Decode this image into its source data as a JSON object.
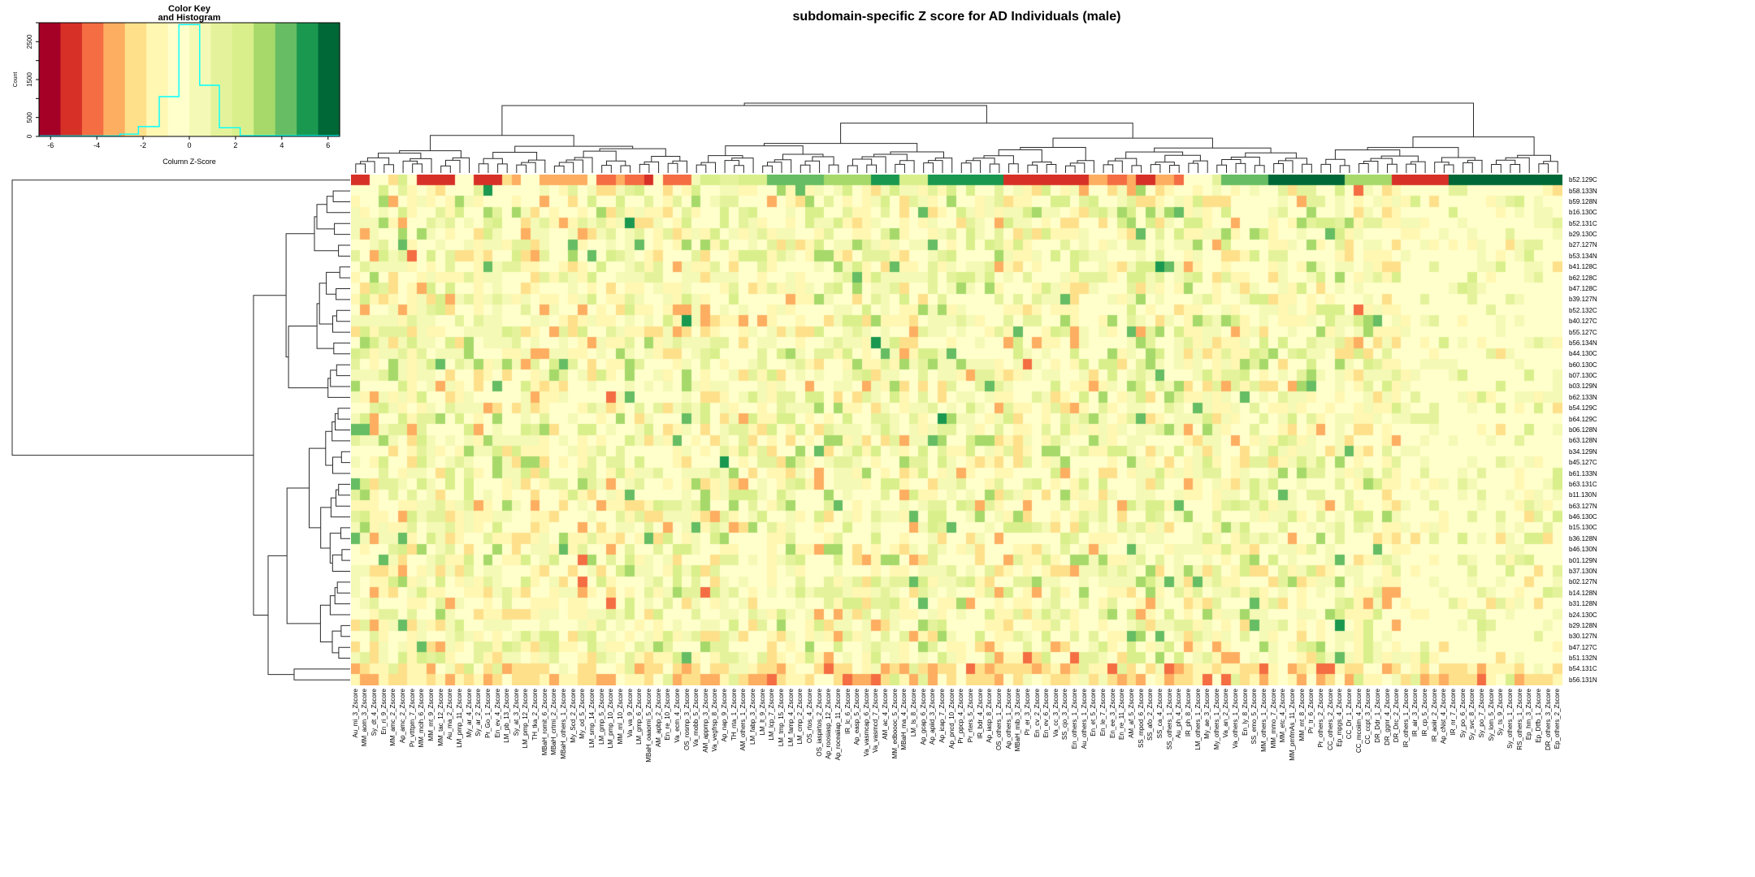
{
  "title": "subdomain-specific Z score for AD Individuals (male)",
  "color_key": {
    "title_line1": "Color Key",
    "title_line2": "and Histogram",
    "xlabel": "Column Z-Score",
    "ylabel": "Count",
    "x_ticks": [
      -6,
      -4,
      -2,
      0,
      2,
      4,
      6
    ],
    "x_range": [
      -6.5,
      6.5
    ],
    "y_ticks_all": [
      0,
      500,
      1000,
      1500,
      2000,
      2500,
      3000
    ],
    "y_ticks_labeled": [
      0,
      500,
      1500,
      2500
    ],
    "y_max": 3000,
    "histogram_color": "#00FFFF",
    "histogram_steps": [
      [
        -6.5,
        -3.0,
        15
      ],
      [
        -3.0,
        -2.2,
        60
      ],
      [
        -2.2,
        -1.3,
        260
      ],
      [
        -1.3,
        -0.45,
        1050
      ],
      [
        -0.45,
        0.45,
        2950
      ],
      [
        0.45,
        1.3,
        1350
      ],
      [
        1.3,
        2.2,
        230
      ],
      [
        2.2,
        6.5,
        20
      ]
    ]
  },
  "chart_data": {
    "type": "heatmap",
    "title": "subdomain-specific Z score for AD Individuals (male)",
    "value_scale_label": "Column Z-Score",
    "value_range": [
      -6.5,
      6.5
    ],
    "palette": [
      "#a50026",
      "#d73027",
      "#f46d43",
      "#fdae61",
      "#fee08b",
      "#fff7b2",
      "#ffffcc",
      "#f4f9b5",
      "#e4f39b",
      "#d9ef8b",
      "#a6d96a",
      "#66bd63",
      "#1a9850",
      "#006837"
    ],
    "row_labels": [
      "b52.129C",
      "b58.133N",
      "b59.128N",
      "b16.130C",
      "b52.131C",
      "b29.130C",
      "b27.127N",
      "b53.134N",
      "b41.128C",
      "b62.128C",
      "b47.128C",
      "b39.127N",
      "b52.132C",
      "b40.127C",
      "b55.127C",
      "b56.134N",
      "b44.130C",
      "b60.130C",
      "b07.130C",
      "b03.129N",
      "b62.133N",
      "b54.129C",
      "b64.129C",
      "b06.128N",
      "b63.128N",
      "b34.129N",
      "b45.127C",
      "b61.133N",
      "b63.131C",
      "b11.130N",
      "b63.127N",
      "b46.130C",
      "b15.130C",
      "b36.128N",
      "b46.130N",
      "b01.129N",
      "b37.130N",
      "b02.127N",
      "b14.128N",
      "b31.128N",
      "b24.130C",
      "b29.128N",
      "b30.127N",
      "b47.127C",
      "b51.132N",
      "b54.131C",
      "b56.131N"
    ],
    "col_labels": [
      "Au_mi_3_Zscore",
      "MM_aom_3_Zscore",
      "Sy_dt_4_Zscore",
      "En_ri_9_Zscore",
      "MM_amc_2_Zscore",
      "Ap_amc_2_Zscore",
      "Pr_vtttpm_7_Zscore",
      "MM_mcih_6_Zscore",
      "MM_mt_9_Zscore",
      "MM_tac_12_Zscore",
      "Au_ma_2_Zscore",
      "LM_pmp_11_Zscore",
      "My_ar_4_Zscore",
      "Sy_ar_2_Zscore",
      "Pr_Go_1_Zscore",
      "En_ev_4_Zscore",
      "LM_pb_13_Zscore",
      "Sy_at_3_Zscore",
      "LM_pmp_12_Zscore",
      "TH_tka_2_Zscore",
      "MBaH_romit_6_Zscore",
      "MBaH_crtmi_2_Zscore",
      "MBaH_others_1_Zscore",
      "My_Scd_2_Zscore",
      "My_od_5_Zscore",
      "LM_smp_14_Zscore",
      "LM_gmp_5_Zscore",
      "LM_pmp_10_Zscore",
      "MM_ml_10_Zscore",
      "Va_va_9_Zscore",
      "LM_gmp_6_Zscore",
      "MBaH_oaaomi_5_Zscore",
      "AM_apbp_2_Zscore",
      "En_re_10_Zscore",
      "Va_ecm_4_Zscore",
      "OS_rosmp_3_Zscore",
      "Va_mobb_5_Zscore",
      "AM_appmp_3_Zscore",
      "Va_vegfrsp_8_Zscore",
      "Ap_nap_9_Zscore",
      "TH_nta_1_Zscore",
      "AM_others_1_Zscore",
      "LM_fabp_3_Zscore",
      "LM_lt_9_Zscore",
      "LM_lcp_7_Zscore",
      "LM_tmp_15_Zscore",
      "LM_famp_4_Zscore",
      "LM_cmp_2_Zscore",
      "OS_rtos_4_Zscore",
      "OS_iaspirtos_2_Zscore",
      "Ap_roosiasp_12_Zscore",
      "Ap_roceaiiap_11_Zscore",
      "IR_lc_6_Zscore",
      "Ap_easp_5_Zscore",
      "Va_vasmcap_6_Zscore",
      "Va_vasmcd_7_Zscore",
      "AM_ac_4_Zscore",
      "MM_edboooc_5_Zscore",
      "MBaH_ma_4_Zscore",
      "LM_ls_8_Zscore",
      "Ap_gcap_6_Zscore",
      "Ap_apiid_3_Zscore",
      "Ap_icap_7_Zscore",
      "Ap_pncd_10_Zscore",
      "Pr_ppcp_4_Zscore",
      "Pr_rters_5_Zscore",
      "IR_bdr_4_Zscore",
      "Ap_iasp_8_Zscore",
      "OS_others_1_Zscore",
      "Ap_others_1_Zscore",
      "MBaH_mib_3_Zscore",
      "Pr_er_3_Zscore",
      "En_cv_2_Zscore",
      "En_ev_6_Zscore",
      "Va_cc_3_Zscore",
      "SS_cjo_3_Zscore",
      "En_others_1_Zscore",
      "Au_others_1_Zscore",
      "En_et_5_Zscore",
      "En_le_7_Zscore",
      "En_ee_3_Zscore",
      "En_re_11_Zscore",
      "AM_af_5_Zscore",
      "SS_mpod_6_Zscore",
      "SS_afo_2_Zscore",
      "SS_ca_4_Zscore",
      "SS_others_1_Zscore",
      "Au_ph_4_Zscore",
      "IR_ph_8_Zscore",
      "LM_others_1_Zscore",
      "My_ae_3_Zscore",
      "My_others_1_Zscore",
      "Va_an_2_Zscore",
      "Va_others_1_Zscore",
      "En_ly_8_Zscore",
      "SS_emo_5_Zscore",
      "MM_others_1_Zscore",
      "MM_mmo_7_Zscore",
      "MM_etc_4_Zscore",
      "MM_pmfmAs_11_Zscore",
      "MM_mt_8_Zscore",
      "Pr_tr_6_Zscore",
      "Pr_others_2_Zscore",
      "CC_others_2_Zscore",
      "Ep_mpgs_4_Zscore",
      "CC_Dr_1_Zscore",
      "CC_mcoiim_4_Zscore",
      "CC_ccpt_3_Zscore",
      "DR_Ddr_1_Zscore",
      "DR_ggnr_4_Zscore",
      "DR_Drc_2_Zscore",
      "IR_others_1_Zscore",
      "IR_air_3_Zscore",
      "IR_cp_5_Zscore",
      "IR_aoiir_2_Zscore",
      "Ap_cNst_4_Zscore",
      "IR_nr_7_Zscore",
      "Sy_po_6_Zscore",
      "Sy_svc_8_Zscore",
      "Sy_po_7_Zscore",
      "Sy_lom_5_Zscore",
      "Sy_ts_9_Zscore",
      "Sy_others_1_Zscore",
      "RS_others_1_Zscore",
      "Ep_hm_3_Zscore",
      "Ep_Dtfb_1_Zscore",
      "DR_others_3_Zscore",
      "Ep_others_2_Zscore"
    ],
    "generation": {
      "seed": 20240613,
      "row1_segments": [
        [
          2,
          1
        ],
        [
          2,
          6
        ],
        [
          1,
          4
        ],
        [
          1,
          9
        ],
        [
          1,
          6
        ],
        [
          4,
          1
        ],
        [
          2,
          0
        ],
        [
          3,
          1
        ],
        [
          1,
          4
        ],
        [
          1,
          3
        ],
        [
          2,
          6
        ],
        [
          5,
          3
        ],
        [
          1,
          6
        ],
        [
          2,
          2
        ],
        [
          1,
          3
        ],
        [
          2,
          2
        ],
        [
          1,
          1
        ],
        [
          1,
          6
        ],
        [
          3,
          2
        ],
        [
          1,
          7
        ],
        [
          2,
          9
        ],
        [
          2,
          8
        ],
        [
          3,
          9
        ],
        [
          6,
          11
        ],
        [
          5,
          10
        ],
        [
          3,
          12
        ],
        [
          3,
          9
        ],
        [
          8,
          12
        ],
        [
          9,
          1
        ],
        [
          2,
          3
        ],
        [
          2,
          2
        ],
        [
          1,
          3
        ],
        [
          2,
          1
        ],
        [
          2,
          3
        ],
        [
          1,
          2
        ],
        [
          3,
          6
        ],
        [
          1,
          8
        ],
        [
          5,
          11
        ],
        [
          8,
          13
        ],
        [
          5,
          10
        ],
        [
          6,
          1
        ],
        [
          12,
          13
        ]
      ],
      "body_weights": [
        [
          3,
          2
        ],
        [
          4,
          7
        ],
        [
          5,
          14
        ],
        [
          6,
          40
        ],
        [
          7,
          16
        ],
        [
          8,
          9
        ],
        [
          9,
          7
        ],
        [
          10,
          4
        ],
        [
          11,
          1
        ]
      ],
      "right_zone_weights": [
        [
          4,
          3
        ],
        [
          5,
          8
        ],
        [
          6,
          66
        ],
        [
          7,
          14
        ],
        [
          8,
          6
        ],
        [
          9,
          3
        ]
      ],
      "bottom_rows_weights": [
        [
          2,
          6
        ],
        [
          3,
          20
        ],
        [
          4,
          30
        ],
        [
          5,
          18
        ],
        [
          6,
          14
        ],
        [
          7,
          5
        ],
        [
          8,
          5
        ],
        [
          9,
          2
        ]
      ],
      "right_zone_start_col": 111,
      "bottom_rows_start": 45
    },
    "dendrograms": {
      "rows": {
        "root_x": 15,
        "outlier_row": "b52.129C",
        "main_merge_x": 312,
        "sub_merge_x": 330,
        "bottom_pair": [
          "b54.131C",
          "b56.131N"
        ],
        "bottom_pair_x": 362
      },
      "columns": {
        "root_split_col": 102
      }
    },
    "legend_position": "top-left",
    "grid": false
  }
}
